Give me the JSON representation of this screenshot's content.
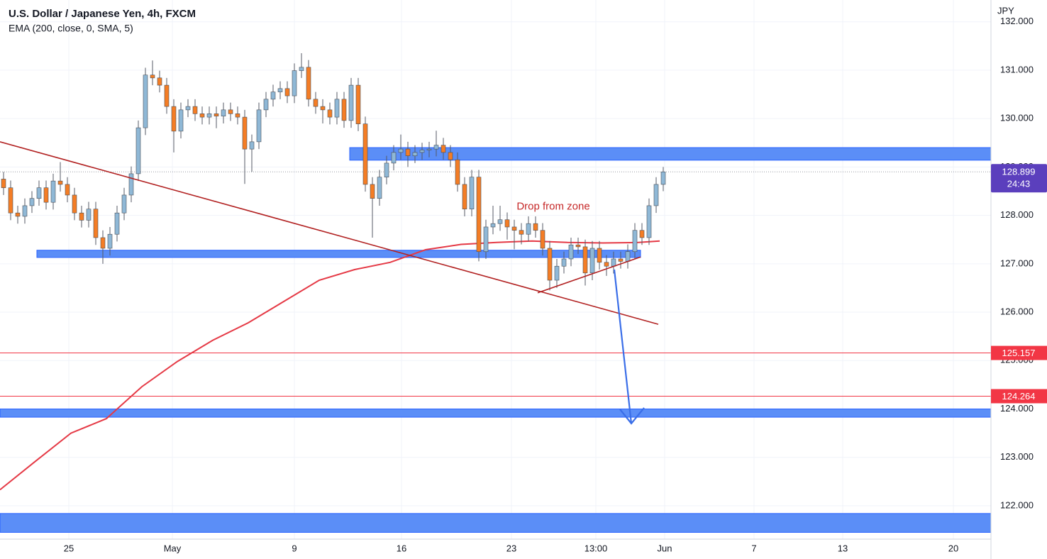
{
  "chart_data": {
    "type": "candlestick",
    "title": "U.S. Dollar / Japanese Yen, 4h, FXCM",
    "currency": "JPY",
    "up_color": "#8fb8d6",
    "down_color": "#f47d25",
    "wick_color": "#555a64",
    "grid": true,
    "xlim": [
      -0.5,
      139.2
    ],
    "ylim": [
      121.31,
      132.45
    ],
    "xticks": [
      {
        "value": 9.2,
        "label": "25"
      },
      {
        "value": 23.8,
        "label": "May"
      },
      {
        "value": 41,
        "label": "9"
      },
      {
        "value": 56.1,
        "label": "16"
      },
      {
        "value": 71.6,
        "label": "23"
      },
      {
        "value": 83.5,
        "label": "13:00"
      },
      {
        "value": 93.2,
        "label": "Jun"
      },
      {
        "value": 105.8,
        "label": "7"
      },
      {
        "value": 118.3,
        "label": "13"
      },
      {
        "value": 133.9,
        "label": "20"
      }
    ],
    "yticks": [
      {
        "value": 122,
        "label": "122.000"
      },
      {
        "value": 123,
        "label": "123.000"
      },
      {
        "value": 124,
        "label": "124.000"
      },
      {
        "value": 125,
        "label": "125.000"
      },
      {
        "value": 126,
        "label": "126.000"
      },
      {
        "value": 127,
        "label": "127.000"
      },
      {
        "value": 128,
        "label": "128.000"
      },
      {
        "value": 129,
        "label": "129.000"
      },
      {
        "value": 130,
        "label": "130.000"
      },
      {
        "value": 131,
        "label": "131.000"
      },
      {
        "value": 132,
        "label": "132.000"
      }
    ],
    "open": [
      128.75,
      128.57,
      128.05,
      127.98,
      128.2,
      128.35,
      128.57,
      128.27,
      128.71,
      128.64,
      128.42,
      128.05,
      127.9,
      128.13,
      127.54,
      127.32,
      127.61,
      128.05,
      128.42,
      128.86,
      129.81,
      130.9,
      130.84,
      130.69,
      130.25,
      129.74,
      130.18,
      130.25,
      130.1,
      130.03,
      130.1,
      130.05,
      130.18,
      130.1,
      130.03,
      129.37,
      129.52,
      130.18,
      130.4,
      130.55,
      130.62,
      130.47,
      130.99,
      131.06,
      130.4,
      130.25,
      130.18,
      130.03,
      130.4,
      129.96,
      130.69,
      129.89,
      128.64,
      128.35,
      128.79,
      129.08,
      129.3,
      129.37,
      129.23,
      129.3,
      129.35,
      129.37,
      129.45,
      129.3,
      129.15,
      128.64,
      128.13,
      128.79,
      127.25,
      127.76,
      127.83,
      127.91,
      127.76,
      127.69,
      127.61,
      127.83,
      127.69,
      127.32,
      126.66,
      126.95,
      127.1,
      127.39,
      127.35,
      126.81,
      127.32,
      127.03,
      126.95,
      127.1,
      127.05,
      127.25,
      127.69,
      127.54,
      128.2,
      128.64
    ],
    "high": [
      128.9,
      128.72,
      128.2,
      128.35,
      128.5,
      128.72,
      128.72,
      128.86,
      129.1,
      128.79,
      128.57,
      128.2,
      128.28,
      128.28,
      127.69,
      127.76,
      128.2,
      128.57,
      129.01,
      129.96,
      131.05,
      131.2,
      130.99,
      130.84,
      130.4,
      130.33,
      130.4,
      130.4,
      130.25,
      130.25,
      130.25,
      130.33,
      130.33,
      130.25,
      130.18,
      129.67,
      130.33,
      130.55,
      130.7,
      130.77,
      130.77,
      131.14,
      131.35,
      131.21,
      130.55,
      130.4,
      130.33,
      130.55,
      130.55,
      130.84,
      130.84,
      130.04,
      128.79,
      128.94,
      129.23,
      129.45,
      129.67,
      129.52,
      129.45,
      129.5,
      129.52,
      129.75,
      129.6,
      129.45,
      129.3,
      128.79,
      128.94,
      128.94,
      127.91,
      128.2,
      128.2,
      128.06,
      127.91,
      127.84,
      127.98,
      127.98,
      127.84,
      127.47,
      127.1,
      127.25,
      127.54,
      127.54,
      127.5,
      127.47,
      127.47,
      127.18,
      127.25,
      127.25,
      127.4,
      127.84,
      127.84,
      128.35,
      128.79,
      129.0
    ],
    "low": [
      128.42,
      127.9,
      127.83,
      127.83,
      128.05,
      128.2,
      128.12,
      128.12,
      128.49,
      128.27,
      127.9,
      127.75,
      127.75,
      127.39,
      127.0,
      127.17,
      127.46,
      127.9,
      128.27,
      128.71,
      129.66,
      130.69,
      130.54,
      130.1,
      129.3,
      129.59,
      130.03,
      129.95,
      129.88,
      129.88,
      129.8,
      129.9,
      129.95,
      129.88,
      128.65,
      128.9,
      129.37,
      130.03,
      130.25,
      130.4,
      130.32,
      130.32,
      130.84,
      130.25,
      130.1,
      129.9,
      129.88,
      129.88,
      129.81,
      129.81,
      129.74,
      128.49,
      127.54,
      128.2,
      128.64,
      128.93,
      129.15,
      129.0,
      129.08,
      129.15,
      129.2,
      129.22,
      129.15,
      129.0,
      128.49,
      127.98,
      127.98,
      127.05,
      127.1,
      127.61,
      127.68,
      127.5,
      127.3,
      127.4,
      127.46,
      127.54,
      127.17,
      126.45,
      126.5,
      126.8,
      126.95,
      127.2,
      126.55,
      126.66,
      126.88,
      126.75,
      126.8,
      126.9,
      126.9,
      127.1,
      127.39,
      127.39,
      128.05,
      128.5
    ],
    "close": [
      128.57,
      128.05,
      127.98,
      128.2,
      128.35,
      128.57,
      128.27,
      128.71,
      128.64,
      128.42,
      128.05,
      127.9,
      128.13,
      127.54,
      127.32,
      127.61,
      128.05,
      128.42,
      128.86,
      129.81,
      130.9,
      130.84,
      130.69,
      130.25,
      129.74,
      130.18,
      130.25,
      130.1,
      130.03,
      130.1,
      130.05,
      130.18,
      130.1,
      130.03,
      129.37,
      129.52,
      130.18,
      130.4,
      130.55,
      130.62,
      130.47,
      130.99,
      131.06,
      130.4,
      130.25,
      130.18,
      130.03,
      130.4,
      129.96,
      130.69,
      129.89,
      128.64,
      128.35,
      128.79,
      129.08,
      129.3,
      129.37,
      129.23,
      129.3,
      129.35,
      129.37,
      129.45,
      129.3,
      129.15,
      128.64,
      128.13,
      128.79,
      127.25,
      127.76,
      127.83,
      127.91,
      127.76,
      127.69,
      127.61,
      127.83,
      127.69,
      127.32,
      126.66,
      126.95,
      127.1,
      127.39,
      127.35,
      126.81,
      127.32,
      127.03,
      126.95,
      127.1,
      127.05,
      127.25,
      127.69,
      127.54,
      128.2,
      128.64,
      128.899
    ],
    "overlays": [
      {
        "type": "line",
        "name": "EMA (200, close, 0, SMA, 5)",
        "color": "#e53945",
        "x": [
          -0.5,
          4.5,
          9.5,
          14.5,
          19.5,
          24.5,
          29.5,
          34.5,
          39.5,
          44.5,
          49.5,
          54.5,
          59.5,
          64.5,
          69.5,
          74.5,
          79.5,
          84.5,
          89.5,
          92.5
        ],
        "values": [
          122.33,
          122.92,
          123.5,
          123.8,
          124.46,
          124.98,
          125.42,
          125.78,
          126.22,
          126.66,
          126.88,
          127.03,
          127.29,
          127.4,
          127.44,
          127.47,
          127.44,
          127.43,
          127.44,
          127.47
        ]
      }
    ],
    "zone_color": "#5b8ef7",
    "zones": [
      {
        "x": [
          48.8,
          139.2
        ],
        "y": [
          129.14,
          129.4
        ]
      },
      {
        "x": [
          4.7,
          89.8
        ],
        "y": [
          127.13,
          127.28
        ]
      },
      {
        "x": [
          -0.5,
          139.2
        ],
        "y": [
          123.83,
          124.0
        ]
      },
      {
        "x": [
          -0.5,
          139.2
        ],
        "y": [
          121.45,
          121.84
        ]
      }
    ],
    "trendlines": [
      {
        "x": [
          -0.5,
          92.3
        ],
        "y": [
          129.52,
          125.75
        ],
        "color": "#b22222"
      },
      {
        "x": [
          75.3,
          89.8
        ],
        "y": [
          126.4,
          127.14
        ],
        "color": "#b22222"
      }
    ],
    "arrow": {
      "x": [
        86.1,
        88.5
      ],
      "y": [
        126.88,
        123.7
      ],
      "color": "#3a6ee8"
    },
    "price_lines": [
      {
        "value": 125.157,
        "color": "#f23645"
      },
      {
        "value": 124.264,
        "color": "#f23645"
      }
    ],
    "last_price": {
      "value": 128.899,
      "countdown": "24:43",
      "color": "#5b3fbd"
    },
    "annotation": {
      "text": "Drop from zone",
      "x": 77.5,
      "y": 128.18,
      "color": "#c62828"
    }
  }
}
